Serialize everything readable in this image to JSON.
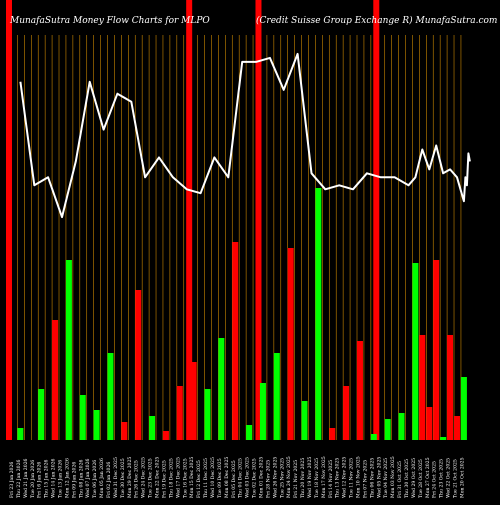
{
  "header": {
    "left_title": "MunafaSutra  Money Flow  Charts for MLPO",
    "right_title": "(Credit Suisse   Group Exchange       R) MunafaSutra.com"
  },
  "colors": {
    "background": "#000000",
    "up_bar": "#00ff00",
    "down_bar": "#ff0000",
    "marker": "#ff0000",
    "grid_line": "#cc8800",
    "line": "#ffffff",
    "text": "#ffffff"
  },
  "chart_data": {
    "type": "bar",
    "grid": true,
    "bar_ylim": [
      0,
      100
    ],
    "line_ylim": [
      0,
      100
    ],
    "categories": [
      "Fri 23 Jan 2026",
      "Thu 22 Jan 2026",
      "Wed 21 Jan 2026",
      "Tue 20 Jan 2026",
      "Fri 16 Jan 2026",
      "Thu 15 Jan 2026",
      "Wed 14 Jan 2026",
      "Tue 13 Jan 2026",
      "Mon 12 Jan 2026",
      "Fri 09 Jan 2026",
      "Thu 08 Jan 2026",
      "Wed 07 Jan 2026",
      "Tue 06 Jan 2026",
      "Mon 05 Jan 2026",
      "Fri 02 Jan 2026",
      "Wed 31 Dec 2025",
      "Tue 30 Dec 2025",
      "Mon 29 Dec 2025",
      "Fri 26 Dec 2025",
      "Wed 24 Dec 2025",
      "Tue 23 Dec 2025",
      "Mon 22 Dec 2025",
      "Fri 19 Dec 2025",
      "Thu 18 Dec 2025",
      "Wed 17 Dec 2025",
      "Tue 16 Dec 2025",
      "Mon 15 Dec 2025",
      "Fri 12 Dec 2025",
      "Thu 11 Dec 2025",
      "Wed 10 Dec 2025",
      "Tue 09 Dec 2025",
      "Mon 08 Dec 2025",
      "Fri 05 Dec 2025",
      "Thu 04 Dec 2025",
      "Wed 03 Dec 2025",
      "Tue 02 Dec 2025",
      "Mon 01 Dec 2025",
      "Fri 28 Nov 2025",
      "Wed 26 Nov 2025",
      "Tue 25 Nov 2025",
      "Mon 24 Nov 2025",
      "Fri 21 Nov 2025",
      "Thu 20 Nov 2025",
      "Wed 19 Nov 2025",
      "Tue 18 Nov 2025",
      "Mon 17 Nov 2025",
      "Fri 14 Nov 2025",
      "Thu 13 Nov 2025",
      "Wed 12 Nov 2025",
      "Tue 11 Nov 2025",
      "Mon 10 Nov 2025",
      "Fri 07 Nov 2025",
      "Thu 06 Nov 2025",
      "Wed 05 Nov 2025",
      "Tue 04 Nov 2025",
      "Mon 03 Nov 2025",
      "Fri 31 Oct 2025",
      "Thu 30 Oct 2025",
      "Wed 29 Oct 2025",
      "Tue 28 Oct 2025",
      "Mon 27 Oct 2025",
      "Fri 24 Oct 2025",
      "Thu 23 Oct 2025",
      "Wed 22 Oct 2025",
      "Tue 21 Oct 2025",
      "Mon 20 Oct 2025"
    ],
    "x_tick_labels": [
      "Fri 23 Jan 2026",
      "Thu 22 Jan 2026",
      "Wed 21 Jan 2026",
      "Tue 20 Jan 2026",
      "Fri 16 Jan 2026",
      "Thu 15 Jan 2026",
      "Wed 14 Jan 2026",
      "Tue 13 Jan 2026",
      "Mon 12 Jan 2026",
      "Fri 09 Jan 2026",
      "Thu 08 Jan 2026",
      "Wed 07 Jan 2026",
      "Tue 06 Jan 2026",
      "Mon 05 Jan 2026",
      "Fri 02 Jan 2026",
      "Wed 31 Dec 2025",
      "Tue 30 Dec 2025",
      "Mon 29 Dec 2025",
      "Fri 26 Dec 2025",
      "Wed 24 Dec 2025",
      "Tue 23 Dec 2025",
      "Mon 22 Dec 2025",
      "Fri 19 Dec 2025",
      "Thu 18 Dec 2025",
      "Wed 17 Dec 2025",
      "Tue 16 Dec 2025",
      "Mon 15 Dec 2025",
      "Fri 12 Dec 2025",
      "Thu 11 Dec 2025",
      "Wed 10 Dec 2025",
      "Tue 09 Dec 2025",
      "Mon 08 Dec 2025",
      "Fri 05 Dec 2025",
      "Thu 04 Dec 2025",
      "Wed 03 Dec 2025",
      "Tue 02 Dec 2025",
      "Mon 01 Dec 2025",
      "Fri 28 Nov 2025",
      "Wed 26 Nov 2025",
      "Tue 25 Nov 2025",
      "Mon 24 Nov 2025",
      "Fri 21 Nov 2025",
      "Thu 20 Nov 2025",
      "Wed 19 Nov 2025",
      "Tue 18 Nov 2025",
      "Mon 17 Nov 2025",
      "Fri 14 Nov 2025",
      "Thu 13 Nov 2025",
      "Wed 12 Nov 2025",
      "Tue 11 Nov 2025",
      "Mon 10 Nov 2025",
      "Fri 07 Nov 2025",
      "Thu 06 Nov 2025",
      "Wed 05 Nov 2025",
      "Tue 04 Nov 2025",
      "Mon 03 Nov 2025",
      "Fri 31 Oct 2025",
      "Thu 30 Oct 2025",
      "Wed 29 Oct 2025",
      "Tue 28 Oct 2025",
      "Mon 27 Oct 2025",
      "Fri 24 Oct 2025",
      "Thu 23 Oct 2025",
      "Wed 22 Oct 2025",
      "Tue 21 Oct 2025",
      "Mon 20 Oct 2025"
    ],
    "bars": [
      {
        "value": 4,
        "color": "green"
      },
      {
        "value": 17,
        "color": "green"
      },
      {
        "value": 40,
        "color": "red"
      },
      {
        "value": 60,
        "color": "green"
      },
      {
        "value": 15,
        "color": "green"
      },
      {
        "value": 10,
        "color": "green"
      },
      {
        "value": 29,
        "color": "green"
      },
      {
        "value": 6,
        "color": "red"
      },
      {
        "value": 50,
        "color": "red"
      },
      {
        "value": 8,
        "color": "green"
      },
      {
        "value": 3,
        "color": "red"
      },
      {
        "value": 18,
        "color": "red"
      },
      {
        "value": 26,
        "color": "red"
      },
      {
        "value": 17,
        "color": "green"
      },
      {
        "value": 34,
        "color": "green"
      },
      {
        "value": 66,
        "color": "red"
      },
      {
        "value": 5,
        "color": "green"
      },
      {
        "value": 19,
        "color": "green"
      },
      {
        "value": 29,
        "color": "green"
      },
      {
        "value": 64,
        "color": "red"
      },
      {
        "value": 13,
        "color": "green"
      },
      {
        "value": 84,
        "color": "green"
      },
      {
        "value": 4,
        "color": "red"
      },
      {
        "value": 18,
        "color": "red"
      },
      {
        "value": 33,
        "color": "red"
      },
      {
        "value": 2,
        "color": "green"
      },
      {
        "value": 7,
        "color": "green"
      },
      {
        "value": 9,
        "color": "green"
      },
      {
        "value": 59,
        "color": "green"
      },
      {
        "value": 35,
        "color": "red"
      },
      {
        "value": 11,
        "color": "red"
      },
      {
        "value": 60,
        "color": "red"
      },
      {
        "value": 1,
        "color": "green"
      },
      {
        "value": 35,
        "color": "red"
      },
      {
        "value": 8,
        "color": "red"
      },
      {
        "value": 21,
        "color": "green"
      }
    ],
    "bar_slots": [
      2,
      5,
      7,
      9,
      11,
      13,
      15,
      17,
      19,
      21,
      23,
      25,
      27,
      29,
      31,
      33,
      35,
      37,
      39,
      41,
      43,
      45,
      47,
      49,
      51,
      53,
      55,
      57,
      59,
      60,
      61,
      62,
      63,
      64,
      65,
      66
    ],
    "line_values": [
      90,
      64,
      66,
      56,
      70,
      90,
      78,
      87,
      85,
      66,
      71,
      66,
      63,
      62,
      71,
      66,
      95,
      95,
      96,
      88,
      97,
      67,
      63,
      64,
      63,
      67,
      66,
      66,
      64,
      66,
      73,
      68,
      74,
      67,
      68,
      66,
      60,
      66,
      64,
      72,
      70
    ],
    "line_slots": [
      2,
      4,
      6,
      8,
      10,
      12,
      14,
      16,
      18,
      20,
      22,
      24,
      26,
      28,
      30,
      32,
      34,
      36,
      38,
      40,
      42,
      44,
      46,
      48,
      50,
      52,
      54,
      56,
      58,
      59,
      60,
      61,
      62,
      63,
      64,
      65,
      66,
      66,
      66,
      66,
      66
    ]
  }
}
